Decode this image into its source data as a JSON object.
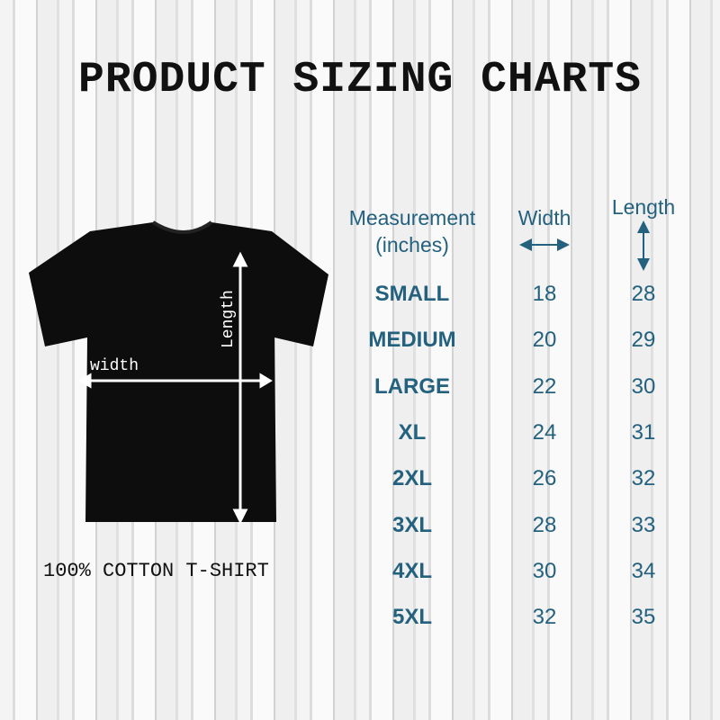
{
  "title": "PRODUCT SIZING CHARTS",
  "shirt": {
    "width_label": "width",
    "length_label": "Length",
    "caption": "100% COTTON T-SHIRT",
    "color": "#0d0d0d"
  },
  "table": {
    "headers": {
      "measurement": "Measurement",
      "unit": "(inches)",
      "width": "Width",
      "length": "Length"
    },
    "text_color": "#23617f",
    "rows": [
      {
        "size": "SMALL",
        "width": "18",
        "length": "28"
      },
      {
        "size": "MEDIUM",
        "width": "20",
        "length": "29"
      },
      {
        "size": "LARGE",
        "width": "22",
        "length": "30"
      },
      {
        "size": "XL",
        "width": "24",
        "length": "31"
      },
      {
        "size": "2XL",
        "width": "26",
        "length": "32"
      },
      {
        "size": "3XL",
        "width": "28",
        "length": "33"
      },
      {
        "size": "4XL",
        "width": "30",
        "length": "34"
      },
      {
        "size": "5XL",
        "width": "32",
        "length": "35"
      }
    ]
  }
}
